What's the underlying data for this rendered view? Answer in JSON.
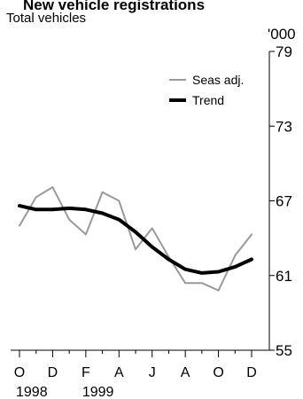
{
  "chart_data": {
    "type": "line",
    "title": "New vehicle registrations",
    "subtitle": "Total vehicles",
    "y_unit": "'000",
    "ylim": [
      55,
      79
    ],
    "y_ticks": [
      "55",
      "61",
      "67",
      "73",
      "79"
    ],
    "x_ticks": [
      "O",
      "D",
      "F",
      "A",
      "J",
      "A",
      "O",
      "D"
    ],
    "x_years": [
      "1998",
      "1999"
    ],
    "x": [
      "Oct 1998",
      "Nov 1998",
      "Dec 1998",
      "Jan 1999",
      "Feb 1999",
      "Mar 1999",
      "Apr 1999",
      "May 1999",
      "Jun 1999",
      "Jul 1999",
      "Aug 1999",
      "Sep 1999",
      "Oct 1999",
      "Nov 1999",
      "Dec 1999"
    ],
    "series": [
      {
        "name": "Seas adj.",
        "color": "#999999",
        "values": [
          65.0,
          67.3,
          68.1,
          65.5,
          64.3,
          67.7,
          67.0,
          63.1,
          64.8,
          62.5,
          60.4,
          60.4,
          59.8,
          62.6,
          64.3
        ]
      },
      {
        "name": "Trend",
        "color": "#000000",
        "values": [
          66.6,
          66.3,
          66.3,
          66.4,
          66.3,
          66.0,
          65.5,
          64.5,
          63.3,
          62.3,
          61.5,
          61.2,
          61.3,
          61.7,
          62.3
        ]
      }
    ],
    "legend_position": "top-right",
    "grid": false
  }
}
